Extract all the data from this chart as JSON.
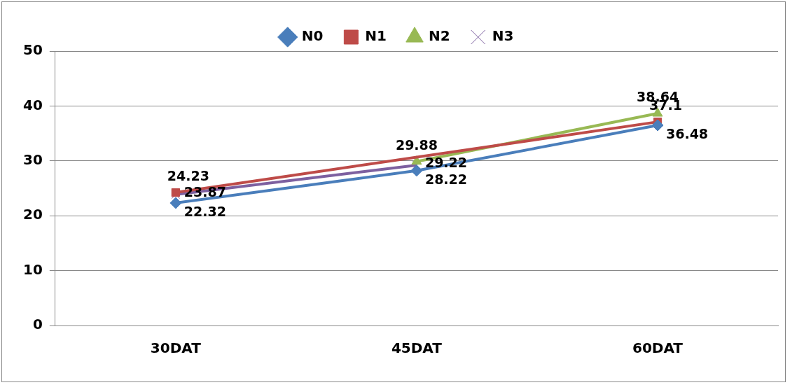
{
  "chart_data": {
    "type": "line",
    "categories": [
      "30DAT",
      "45DAT",
      "60DAT"
    ],
    "series": [
      {
        "name": "N0",
        "color": "#4a7ebb",
        "marker": "diamond",
        "values": [
          22.32,
          28.22,
          36.48
        ],
        "value_labels": [
          "22.32",
          "28.22",
          "36.48"
        ]
      },
      {
        "name": "N1",
        "color": "#be4b48",
        "marker": "square",
        "values": [
          24.23,
          null,
          37.1
        ],
        "value_labels": [
          "24.23",
          null,
          "37.1"
        ]
      },
      {
        "name": "N2",
        "color": "#98b954",
        "marker": "triangle",
        "values": [
          null,
          29.88,
          38.64
        ],
        "value_labels": [
          null,
          "29.88",
          "38.64"
        ]
      },
      {
        "name": "N3",
        "color": "#7d60a0",
        "marker": "cross",
        "values": [
          23.87,
          29.22,
          null
        ],
        "value_labels": [
          "23.87",
          "29.22",
          null
        ]
      }
    ],
    "ylim": [
      0,
      50
    ],
    "yticks": [
      0,
      10,
      20,
      30,
      40,
      50
    ],
    "grid": "y",
    "legend": "top"
  }
}
